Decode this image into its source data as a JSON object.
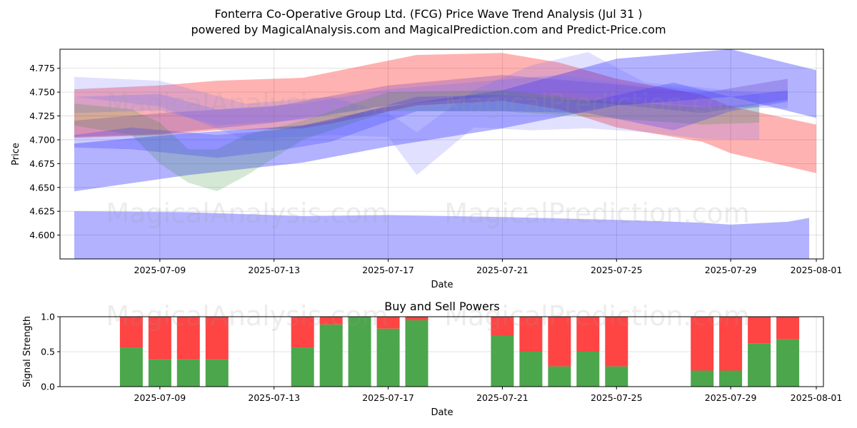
{
  "chart_data": [
    {
      "type": "area",
      "title": "Fonterra Co-Operative Group Ltd. (FCG) Price Wave Trend Analysis (Jul 31 )",
      "subtitle": "powered by MagicalAnalysis.com and MagicalPrediction.com and Predict-Price.com",
      "xlabel": "Date",
      "ylabel": "Price",
      "x_range": [
        "2025-07-05T12",
        "2025-08-01T06"
      ],
      "ylim": [
        4.575,
        4.795
      ],
      "x_ticks": [
        "2025-07-09",
        "2025-07-13",
        "2025-07-17",
        "2025-07-21",
        "2025-07-25",
        "2025-07-29",
        "2025-08-01"
      ],
      "y_ticks": [
        "4.600",
        "4.625",
        "4.650",
        "4.675",
        "4.700",
        "4.725",
        "4.750",
        "4.775"
      ],
      "grid": true,
      "watermarks": [
        "MagicalAnalysis.com",
        "MagicalPrediction.com"
      ],
      "colors": {
        "red": "#ff0000",
        "blue": "#0000ff",
        "lightblue": "#6b6bff",
        "green": "#2e8b2e",
        "purple": "#5a2dbf"
      },
      "series": [
        {
          "name": "red band",
          "color": "#ff0000",
          "opacity": 0.3,
          "x": [
            "2025-07-06",
            "2025-07-09",
            "2025-07-11",
            "2025-07-14",
            "2025-07-15",
            "2025-07-18",
            "2025-07-21",
            "2025-07-23",
            "2025-07-25",
            "2025-07-28",
            "2025-07-29",
            "2025-08-01"
          ],
          "upper": [
            4.753,
            4.757,
            4.762,
            4.765,
            4.771,
            4.789,
            4.791,
            4.781,
            4.764,
            4.747,
            4.735,
            4.716
          ],
          "lower": [
            4.702,
            4.705,
            4.71,
            4.712,
            4.717,
            4.736,
            4.741,
            4.732,
            4.713,
            4.698,
            4.686,
            4.665
          ]
        },
        {
          "name": "bottom blue band",
          "color": "#0000ff",
          "opacity": 0.3,
          "x": [
            "2025-07-06",
            "2025-07-10",
            "2025-07-14",
            "2025-07-17",
            "2025-07-21",
            "2025-07-25",
            "2025-07-28",
            "2025-07-29",
            "2025-07-31",
            "2025-07-31T18"
          ],
          "upper": [
            4.625,
            4.624,
            4.62,
            4.621,
            4.619,
            4.616,
            4.613,
            4.611,
            4.614,
            4.618
          ],
          "lower": [
            4.575,
            4.575,
            4.575,
            4.575,
            4.575,
            4.575,
            4.575,
            4.575,
            4.575,
            4.575
          ]
        },
        {
          "name": "wide blue band",
          "color": "#0000ff",
          "opacity": 0.3,
          "x": [
            "2025-07-06",
            "2025-07-10",
            "2025-07-14",
            "2025-07-17",
            "2025-07-21",
            "2025-07-25",
            "2025-07-29",
            "2025-08-01"
          ],
          "upper": [
            4.696,
            4.707,
            4.715,
            4.735,
            4.752,
            4.785,
            4.795,
            4.773
          ],
          "lower": [
            4.646,
            4.663,
            4.676,
            4.693,
            4.712,
            4.736,
            4.745,
            4.723
          ]
        },
        {
          "name": "purple band",
          "color": "#5a2dbf",
          "opacity": 0.25,
          "x": [
            "2025-07-06",
            "2025-07-09",
            "2025-07-13",
            "2025-07-17",
            "2025-07-21",
            "2025-07-25",
            "2025-07-28",
            "2025-07-31"
          ],
          "upper": [
            4.72,
            4.728,
            4.735,
            4.757,
            4.768,
            4.758,
            4.749,
            4.764
          ],
          "lower": [
            4.703,
            4.706,
            4.718,
            4.736,
            4.747,
            4.737,
            4.728,
            4.742
          ]
        },
        {
          "name": "light blue band 1",
          "color": "#6b6bff",
          "opacity": 0.25,
          "x": [
            "2025-07-06",
            "2025-07-09",
            "2025-07-11",
            "2025-07-14",
            "2025-07-17",
            "2025-07-21",
            "2025-07-23",
            "2025-07-25",
            "2025-07-28",
            "2025-07-31"
          ],
          "upper": [
            4.745,
            4.748,
            4.732,
            4.738,
            4.753,
            4.763,
            4.768,
            4.76,
            4.752,
            4.75
          ],
          "lower": [
            4.728,
            4.731,
            4.715,
            4.721,
            4.736,
            4.746,
            4.751,
            4.743,
            4.735,
            4.733
          ]
        },
        {
          "name": "light blue band 2",
          "color": "#6b6bff",
          "opacity": 0.2,
          "x": [
            "2025-07-06",
            "2025-07-09",
            "2025-07-12",
            "2025-07-15",
            "2025-07-17",
            "2025-07-18",
            "2025-07-20",
            "2025-07-22",
            "2025-07-24",
            "2025-07-26",
            "2025-07-28",
            "2025-07-30"
          ],
          "upper": [
            4.766,
            4.762,
            4.738,
            4.745,
            4.728,
            4.708,
            4.752,
            4.778,
            4.792,
            4.76,
            4.755,
            4.748
          ],
          "lower": [
            4.745,
            4.735,
            4.7,
            4.705,
            4.703,
            4.663,
            4.713,
            4.71,
            4.712,
            4.708,
            4.701,
            4.7
          ]
        },
        {
          "name": "green band",
          "color": "#2e8b2e",
          "opacity": 0.2,
          "x": [
            "2025-07-06",
            "2025-07-08",
            "2025-07-09",
            "2025-07-10",
            "2025-07-11",
            "2025-07-12",
            "2025-07-14",
            "2025-07-17",
            "2025-07-21",
            "2025-07-24",
            "2025-07-28",
            "2025-07-30"
          ],
          "upper": [
            4.738,
            4.732,
            4.718,
            4.69,
            4.69,
            4.705,
            4.72,
            4.75,
            4.752,
            4.742,
            4.734,
            4.738
          ],
          "lower": [
            4.715,
            4.705,
            4.675,
            4.655,
            4.646,
            4.662,
            4.7,
            4.73,
            4.73,
            4.724,
            4.716,
            4.718
          ]
        },
        {
          "name": "blue band 2",
          "color": "#2f2fff",
          "opacity": 0.25,
          "x": [
            "2025-07-06",
            "2025-07-08",
            "2025-07-11",
            "2025-07-13",
            "2025-07-15",
            "2025-07-18",
            "2025-07-21",
            "2025-07-24",
            "2025-07-27",
            "2025-07-29",
            "2025-07-31"
          ],
          "upper": [
            4.705,
            4.713,
            4.705,
            4.71,
            4.72,
            4.745,
            4.747,
            4.74,
            4.76,
            4.745,
            4.752
          ],
          "lower": [
            4.692,
            4.69,
            4.681,
            4.688,
            4.698,
            4.73,
            4.73,
            4.728,
            4.71,
            4.73,
            4.74
          ]
        }
      ]
    },
    {
      "type": "bar",
      "title": "Buy and Sell Powers",
      "xlabel": "Date",
      "ylabel": "Signal Strength",
      "x_range": [
        "2025-07-05T12",
        "2025-08-01T06"
      ],
      "ylim": [
        0,
        1
      ],
      "x_ticks": [
        "2025-07-09",
        "2025-07-13",
        "2025-07-17",
        "2025-07-21",
        "2025-07-25",
        "2025-07-29",
        "2025-08-01"
      ],
      "y_ticks": [
        "0.0",
        "0.5",
        "1.0"
      ],
      "grid": true,
      "watermarks": [
        "MagicalAnalysis.com",
        "MagicalPrediction.com"
      ],
      "colors": {
        "buy": "#4ca64c",
        "sell": "#ff4444"
      },
      "categories": [
        "2025-07-08",
        "2025-07-09",
        "2025-07-10",
        "2025-07-11",
        "2025-07-14",
        "2025-07-15",
        "2025-07-16",
        "2025-07-17",
        "2025-07-18",
        "2025-07-21",
        "2025-07-22",
        "2025-07-23",
        "2025-07-24",
        "2025-07-25",
        "2025-07-28",
        "2025-07-29",
        "2025-07-30",
        "2025-07-31"
      ],
      "series": [
        {
          "name": "Buy",
          "values": [
            0.56,
            0.39,
            0.39,
            0.39,
            0.56,
            0.89,
            1.0,
            0.83,
            0.95,
            0.73,
            0.5,
            0.29,
            0.5,
            0.29,
            0.23,
            0.23,
            0.62,
            0.68
          ]
        },
        {
          "name": "Sell",
          "values": [
            0.44,
            0.61,
            0.61,
            0.61,
            0.44,
            0.11,
            0.0,
            0.17,
            0.05,
            0.27,
            0.5,
            0.71,
            0.5,
            0.71,
            0.77,
            0.77,
            0.38,
            0.32
          ]
        }
      ]
    }
  ]
}
